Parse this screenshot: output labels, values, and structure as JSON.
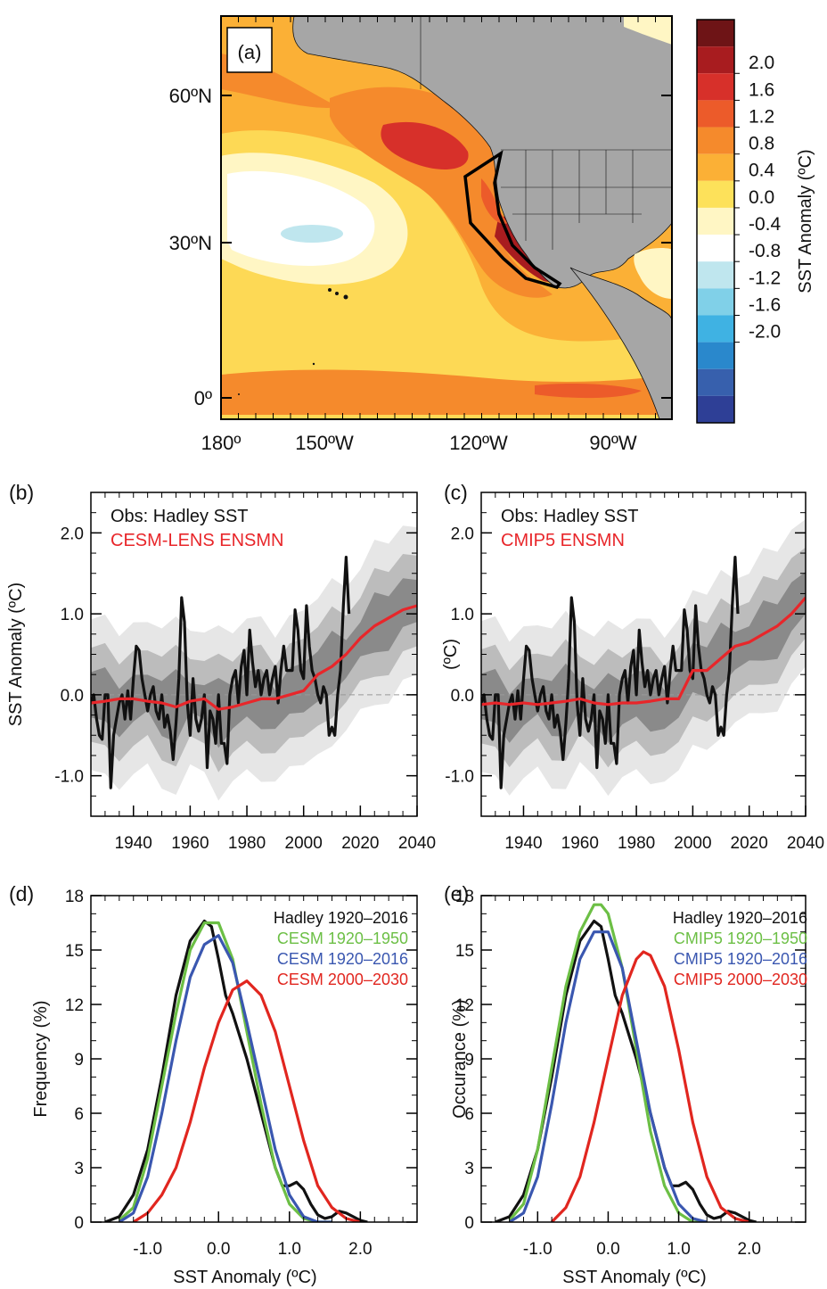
{
  "colors": {
    "obs": "#111111",
    "ensmn": "#e8262a",
    "green": "#6cbf45",
    "blue": "#3a57b0",
    "red": "#e1261f",
    "land": "#a6a6a6",
    "band_light": "#e6e6e6",
    "band_mid": "#bcbcbc",
    "band_dark": "#8a8a8a"
  },
  "map": {
    "panel_label": "(a)",
    "lat_labels": [
      "60ºN",
      "30ºN",
      "0º"
    ],
    "lon_labels": [
      "180º",
      "150ºW",
      "120ºW",
      "90ºW"
    ],
    "colorbar_title": "SST Anomaly (ºC)",
    "colorbar_levels": [
      "2.0",
      "1.6",
      "1.2",
      "0.8",
      "0.4",
      "0.0",
      "-0.4",
      "-0.8",
      "-1.2",
      "-1.6",
      "-2.0"
    ],
    "colorbar_colors": [
      "#6e1416",
      "#a81c1f",
      "#d7302a",
      "#ec5b2a",
      "#f58a2c",
      "#fbb036",
      "#fde15a",
      "#fff6c4",
      "#ffffff",
      "#bfe6ee",
      "#80d0e8",
      "#3fb2e3",
      "#2a88cc",
      "#3760ad",
      "#2e3f96"
    ]
  },
  "chart_data": [
    {
      "type": "line",
      "panel_label": "(b)",
      "ylabel": "SST Anomaly (ºC)",
      "xlabel": "",
      "xlim": [
        1925,
        2040
      ],
      "ylim": [
        -1.5,
        2.5
      ],
      "xticks": [
        "1940",
        "1960",
        "1980",
        "2000",
        "2020",
        "2040"
      ],
      "yticks": [
        "-1.0",
        "0.0",
        "1.0",
        "2.0"
      ],
      "legend": [
        "Obs: Hadley SST",
        "CESM-LENS ENSMN"
      ],
      "series": [
        {
          "name": "Obs: Hadley SST",
          "x": [
            1925,
            1926,
            1927,
            1928,
            1929,
            1930,
            1931,
            1932,
            1933,
            1934,
            1935,
            1936,
            1937,
            1938,
            1939,
            1940,
            1941,
            1942,
            1943,
            1944,
            1945,
            1946,
            1947,
            1948,
            1949,
            1950,
            1951,
            1952,
            1953,
            1954,
            1955,
            1956,
            1957,
            1958,
            1959,
            1960,
            1961,
            1962,
            1963,
            1964,
            1965,
            1966,
            1967,
            1968,
            1969,
            1970,
            1971,
            1972,
            1973,
            1974,
            1975,
            1976,
            1977,
            1978,
            1979,
            1980,
            1981,
            1982,
            1983,
            1984,
            1985,
            1986,
            1987,
            1988,
            1989,
            1990,
            1991,
            1992,
            1993,
            1994,
            1995,
            1996,
            1997,
            1998,
            1999,
            2000,
            2001,
            2002,
            2003,
            2004,
            2005,
            2006,
            2007,
            2008,
            2009,
            2010,
            2011,
            2012,
            2013,
            2014,
            2015,
            2016
          ],
          "values": [
            -0.1,
            0.0,
            -0.3,
            -0.5,
            -0.55,
            0.0,
            0.0,
            -1.15,
            -0.5,
            -0.3,
            -0.1,
            0.0,
            -0.3,
            0.05,
            -0.3,
            0.2,
            0.6,
            0.55,
            0.2,
            0.0,
            -0.2,
            0.0,
            0.1,
            -0.2,
            -0.3,
            0.0,
            -0.4,
            -0.25,
            -0.45,
            -0.8,
            -0.35,
            0.2,
            1.2,
            0.9,
            -0.1,
            -0.5,
            0.2,
            -0.3,
            -0.45,
            -0.3,
            0.0,
            -0.9,
            -0.2,
            -0.3,
            -0.6,
            0.0,
            -0.6,
            -0.6,
            -0.85,
            0.0,
            0.2,
            0.3,
            -0.1,
            0.35,
            0.55,
            0.0,
            0.8,
            0.4,
            0.1,
            0.3,
            0.0,
            0.2,
            0.3,
            0.0,
            0.2,
            0.35,
            -0.1,
            0.3,
            0.6,
            0.3,
            0.3,
            0.3,
            1.05,
            0.8,
            0.3,
            0.2,
            1.1,
            0.6,
            0.3,
            0.2,
            0.0,
            -0.1,
            0.1,
            0.0,
            -0.5,
            -0.4,
            -0.5,
            0.0,
            0.3,
            1.1,
            1.7,
            1.0
          ]
        },
        {
          "name": "CESM-LENS ENSMN",
          "x": [
            1925,
            1930,
            1935,
            1940,
            1945,
            1950,
            1955,
            1960,
            1965,
            1970,
            1975,
            1980,
            1985,
            1990,
            1995,
            2000,
            2005,
            2010,
            2015,
            2020,
            2025,
            2030,
            2035,
            2040
          ],
          "values": [
            -0.1,
            -0.08,
            -0.05,
            -0.05,
            -0.08,
            -0.1,
            -0.15,
            -0.08,
            -0.05,
            -0.18,
            -0.15,
            -0.1,
            -0.05,
            -0.05,
            0.0,
            0.05,
            0.25,
            0.35,
            0.5,
            0.7,
            0.85,
            0.95,
            1.05,
            1.1
          ]
        }
      ]
    },
    {
      "type": "line",
      "panel_label": "(c)",
      "ylabel": "(ºC)",
      "xlabel": "",
      "xlim": [
        1925,
        2040
      ],
      "ylim": [
        -1.5,
        2.5
      ],
      "xticks": [
        "1940",
        "1960",
        "1980",
        "2000",
        "2020",
        "2040"
      ],
      "yticks": [
        "-1.0",
        "0.0",
        "1.0",
        "2.0"
      ],
      "legend": [
        "Obs: Hadley SST",
        "CMIP5 ENSMN"
      ],
      "series": [
        {
          "name": "Obs: Hadley SST",
          "x": [
            1925,
            1926,
            1927,
            1928,
            1929,
            1930,
            1931,
            1932,
            1933,
            1934,
            1935,
            1936,
            1937,
            1938,
            1939,
            1940,
            1941,
            1942,
            1943,
            1944,
            1945,
            1946,
            1947,
            1948,
            1949,
            1950,
            1951,
            1952,
            1953,
            1954,
            1955,
            1956,
            1957,
            1958,
            1959,
            1960,
            1961,
            1962,
            1963,
            1964,
            1965,
            1966,
            1967,
            1968,
            1969,
            1970,
            1971,
            1972,
            1973,
            1974,
            1975,
            1976,
            1977,
            1978,
            1979,
            1980,
            1981,
            1982,
            1983,
            1984,
            1985,
            1986,
            1987,
            1988,
            1989,
            1990,
            1991,
            1992,
            1993,
            1994,
            1995,
            1996,
            1997,
            1998,
            1999,
            2000,
            2001,
            2002,
            2003,
            2004,
            2005,
            2006,
            2007,
            2008,
            2009,
            2010,
            2011,
            2012,
            2013,
            2014,
            2015,
            2016
          ],
          "values": [
            -0.1,
            0.0,
            -0.3,
            -0.5,
            -0.55,
            0.0,
            0.0,
            -1.15,
            -0.5,
            -0.3,
            -0.1,
            0.0,
            -0.3,
            0.05,
            -0.3,
            0.2,
            0.6,
            0.55,
            0.2,
            0.0,
            -0.2,
            0.0,
            0.1,
            -0.2,
            -0.3,
            0.0,
            -0.4,
            -0.25,
            -0.45,
            -0.8,
            -0.35,
            0.2,
            1.2,
            0.9,
            -0.1,
            -0.5,
            0.2,
            -0.3,
            -0.45,
            -0.3,
            0.0,
            -0.9,
            -0.2,
            -0.3,
            -0.6,
            0.0,
            -0.6,
            -0.6,
            -0.85,
            0.0,
            0.2,
            0.3,
            -0.1,
            0.35,
            0.55,
            0.0,
            0.8,
            0.4,
            0.1,
            0.3,
            0.0,
            0.2,
            0.3,
            0.0,
            0.2,
            0.35,
            -0.1,
            0.3,
            0.6,
            0.3,
            0.3,
            0.3,
            1.05,
            0.8,
            0.3,
            0.2,
            1.1,
            0.6,
            0.3,
            0.2,
            0.0,
            -0.1,
            0.1,
            0.0,
            -0.5,
            -0.4,
            -0.5,
            0.0,
            0.3,
            1.1,
            1.7,
            1.0
          ]
        },
        {
          "name": "CMIP5 ENSMN",
          "x": [
            1925,
            1930,
            1935,
            1940,
            1945,
            1950,
            1955,
            1960,
            1965,
            1970,
            1975,
            1980,
            1985,
            1990,
            1995,
            2000,
            2005,
            2010,
            2015,
            2020,
            2025,
            2030,
            2035,
            2040
          ],
          "values": [
            -0.12,
            -0.1,
            -0.12,
            -0.1,
            -0.12,
            -0.1,
            -0.08,
            -0.05,
            -0.1,
            -0.12,
            -0.1,
            -0.1,
            -0.08,
            -0.05,
            -0.05,
            0.3,
            0.3,
            0.45,
            0.6,
            0.65,
            0.75,
            0.85,
            1.0,
            1.2
          ]
        }
      ]
    },
    {
      "type": "line",
      "panel_label": "(d)",
      "xlabel": "SST Anomaly (ºC)",
      "ylabel": "Frequency (%)",
      "xlim": [
        -1.8,
        2.8
      ],
      "ylim": [
        0,
        18
      ],
      "xticks": [
        "-1.0",
        "0.0",
        "1.0",
        "2.0"
      ],
      "yticks": [
        "0",
        "3",
        "6",
        "9",
        "12",
        "15",
        "18"
      ],
      "legend": [
        "Hadley 1920–2016",
        "CESM 1920–1950",
        "CESM 1920–2016",
        "CESM 2000–2030"
      ],
      "series": [
        {
          "name": "Hadley 1920–2016",
          "x": [
            -1.6,
            -1.4,
            -1.2,
            -1.0,
            -0.8,
            -0.6,
            -0.4,
            -0.2,
            -0.1,
            0.0,
            0.1,
            0.2,
            0.4,
            0.6,
            0.8,
            0.9,
            1.0,
            1.1,
            1.2,
            1.3,
            1.4,
            1.5,
            1.6,
            1.7,
            1.8,
            2.0,
            2.1
          ],
          "values": [
            0.0,
            0.3,
            1.5,
            4.0,
            8.0,
            12.5,
            15.5,
            16.6,
            16.3,
            14.5,
            12.5,
            11.5,
            9.0,
            6.0,
            3.0,
            2.0,
            2.0,
            2.2,
            1.8,
            1.0,
            0.4,
            0.2,
            0.3,
            0.6,
            0.5,
            0.1,
            0.0
          ]
        },
        {
          "name": "CESM 1920–1950",
          "x": [
            -1.4,
            -1.2,
            -1.0,
            -0.8,
            -0.6,
            -0.4,
            -0.2,
            0.0,
            0.2,
            0.4,
            0.6,
            0.8,
            1.0,
            1.2,
            1.4,
            1.6
          ],
          "values": [
            0.1,
            0.8,
            3.5,
            7.5,
            11.5,
            15.0,
            16.5,
            16.5,
            14.5,
            10.5,
            6.5,
            3.0,
            1.0,
            0.2,
            0.0,
            0.0
          ]
        },
        {
          "name": "CESM 1920–2016",
          "x": [
            -1.4,
            -1.2,
            -1.0,
            -0.8,
            -0.6,
            -0.4,
            -0.2,
            0.0,
            0.2,
            0.4,
            0.6,
            0.8,
            1.0,
            1.2,
            1.4,
            1.6
          ],
          "values": [
            0.0,
            0.5,
            2.5,
            6.0,
            10.0,
            13.5,
            15.3,
            15.8,
            14.3,
            11.0,
            7.5,
            4.0,
            1.5,
            0.3,
            0.0,
            0.0
          ]
        },
        {
          "name": "CESM 2000–2030",
          "x": [
            -1.2,
            -1.0,
            -0.8,
            -0.6,
            -0.4,
            -0.2,
            0.0,
            0.2,
            0.4,
            0.6,
            0.8,
            1.0,
            1.2,
            1.4,
            1.6,
            1.8,
            2.0
          ],
          "values": [
            0.0,
            0.5,
            1.5,
            3.0,
            5.5,
            8.5,
            11.0,
            12.8,
            13.3,
            12.5,
            10.5,
            7.5,
            4.5,
            2.0,
            0.8,
            0.2,
            0.0
          ]
        }
      ]
    },
    {
      "type": "line",
      "panel_label": "(e)",
      "xlabel": "SST Anomaly (ºC)",
      "ylabel": "Occurance (%)",
      "xlim": [
        -1.8,
        2.8
      ],
      "ylim": [
        0,
        18
      ],
      "xticks": [
        "-1.0",
        "0.0",
        "1.0",
        "2.0"
      ],
      "yticks": [
        "0",
        "3",
        "6",
        "9",
        "12",
        "15",
        "18"
      ],
      "legend": [
        "Hadley 1920–2016",
        "CMIP5 1920–1950",
        "CMIP5 1920–2016",
        "CMIP5 2000–2030"
      ],
      "series": [
        {
          "name": "Hadley 1920–2016",
          "x": [
            -1.6,
            -1.4,
            -1.2,
            -1.0,
            -0.8,
            -0.6,
            -0.4,
            -0.2,
            -0.1,
            0.0,
            0.1,
            0.2,
            0.4,
            0.6,
            0.8,
            0.9,
            1.0,
            1.1,
            1.2,
            1.3,
            1.4,
            1.5,
            1.6,
            1.7,
            1.8,
            2.0,
            2.1
          ],
          "values": [
            0.0,
            0.3,
            1.5,
            4.0,
            8.0,
            12.5,
            15.5,
            16.6,
            16.3,
            14.5,
            12.5,
            11.5,
            9.0,
            6.0,
            3.0,
            2.0,
            2.0,
            2.2,
            1.8,
            1.0,
            0.4,
            0.2,
            0.3,
            0.6,
            0.5,
            0.1,
            0.0
          ]
        },
        {
          "name": "CMIP5 1920–1950",
          "x": [
            -1.4,
            -1.2,
            -1.0,
            -0.8,
            -0.6,
            -0.4,
            -0.2,
            -0.1,
            0.0,
            0.2,
            0.4,
            0.6,
            0.8,
            1.0,
            1.2,
            1.4
          ],
          "values": [
            0.1,
            1.0,
            4.0,
            8.5,
            13.0,
            16.0,
            17.5,
            17.5,
            17.0,
            14.0,
            9.5,
            5.0,
            2.0,
            0.5,
            0.0,
            0.0
          ]
        },
        {
          "name": "CMIP5 1920–2016",
          "x": [
            -1.4,
            -1.2,
            -1.0,
            -0.8,
            -0.6,
            -0.4,
            -0.2,
            0.0,
            0.2,
            0.4,
            0.6,
            0.8,
            1.0,
            1.2,
            1.4
          ],
          "values": [
            0.0,
            0.5,
            2.5,
            6.5,
            11.0,
            14.5,
            16.0,
            16.0,
            14.0,
            10.0,
            6.0,
            3.0,
            1.0,
            0.2,
            0.0
          ]
        },
        {
          "name": "CMIP5 2000–2030",
          "x": [
            -0.8,
            -0.6,
            -0.4,
            -0.2,
            0.0,
            0.2,
            0.4,
            0.5,
            0.6,
            0.8,
            1.0,
            1.2,
            1.4,
            1.6,
            1.8,
            2.0
          ],
          "values": [
            0.0,
            0.8,
            2.5,
            5.5,
            9.0,
            12.5,
            14.5,
            14.9,
            14.7,
            13.0,
            9.5,
            5.5,
            2.5,
            0.8,
            0.2,
            0.0
          ]
        }
      ]
    }
  ]
}
